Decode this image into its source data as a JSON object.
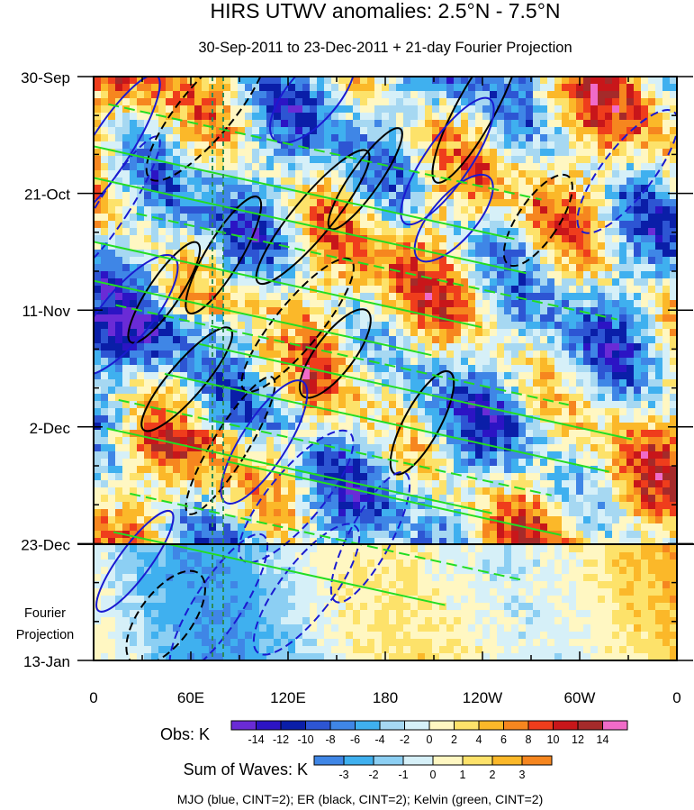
{
  "chart_data": {
    "type": "heatmap",
    "title": "HIRS UTWV anomalies: 2.5°N - 7.5°N",
    "subtitle": "30-Sep-2011 to 23-Dec-2011 + 21-day Fourier Projection",
    "x_ticks": [
      {
        "lon": 0,
        "label": "0"
      },
      {
        "lon": 60,
        "label": "60E"
      },
      {
        "lon": 120,
        "label": "120E"
      },
      {
        "lon": 180,
        "label": "180"
      },
      {
        "lon": 240,
        "label": "120W"
      },
      {
        "lon": 300,
        "label": "60W"
      },
      {
        "lon": 360,
        "label": "0"
      }
    ],
    "x_minor_step": 30,
    "xlim": [
      0,
      360
    ],
    "y_ticks": [
      {
        "day": 0,
        "label": "30-Sep"
      },
      {
        "day": 21,
        "label": "21-Oct"
      },
      {
        "day": 42,
        "label": "11-Nov"
      },
      {
        "day": 63,
        "label": "2-Dec"
      },
      {
        "day": 84,
        "label": "23-Dec"
      },
      {
        "day": 105,
        "label": "13-Jan"
      }
    ],
    "y_minor_step": 7,
    "ylim_days": [
      0,
      105
    ],
    "projection_start_day": 84,
    "projection_label": [
      "Fourier",
      "Projection"
    ],
    "dashed_vertical_lons": [
      74,
      80
    ],
    "obs_colorbar": {
      "label": "Obs: K",
      "levels": [
        -14,
        -12,
        -10,
        -8,
        -6,
        -4,
        -2,
        0,
        2,
        4,
        6,
        8,
        10,
        12,
        14
      ],
      "colors": [
        "#6a2bd6",
        "#2c14c4",
        "#0a1ea8",
        "#2d55d3",
        "#3f86e6",
        "#3fb0ef",
        "#a6d8f2",
        "#d6f0f8",
        "#fff7c2",
        "#fde26a",
        "#fbb829",
        "#f6861f",
        "#ef3d1c",
        "#c8161a",
        "#a52a2a",
        "#f06bc8"
      ]
    },
    "waves_colorbar": {
      "label": "Sum of Waves: K",
      "levels": [
        -3,
        -2,
        -1,
        0,
        1,
        2,
        3
      ],
      "colors": [
        "#3f86e6",
        "#3fb0ef",
        "#8ccff3",
        "#d6f0f8",
        "#fff7c2",
        "#fde26a",
        "#fbb829",
        "#f6861f"
      ]
    },
    "wave_contours": [
      {
        "name": "MJO",
        "color": "#1a1ad0"
      },
      {
        "name": "ER",
        "color": "#000000"
      },
      {
        "name": "Kelvin",
        "color": "#22dd22"
      }
    ],
    "footnote": "MJO (blue, CINT=2); ER (black, CINT=2); Kelvin (green, CINT=2)"
  }
}
